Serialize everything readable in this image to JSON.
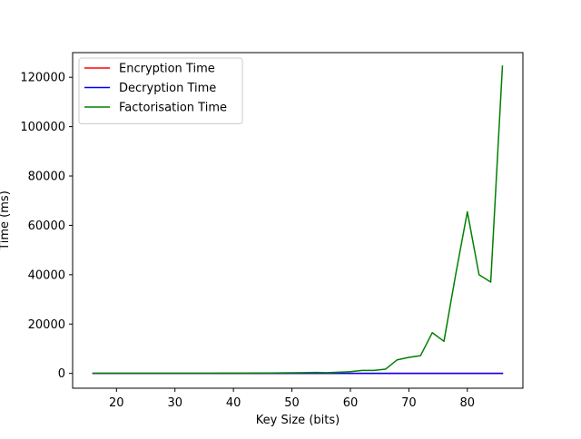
{
  "chart_data": {
    "type": "line",
    "title": "",
    "xlabel": "Key Size (bits)",
    "ylabel": "Time (ms)",
    "xlim": [
      12.5,
      89.5
    ],
    "ylim": [
      -6000,
      130000
    ],
    "x_ticks": [
      20,
      30,
      40,
      50,
      60,
      70,
      80
    ],
    "y_ticks": [
      0,
      20000,
      40000,
      60000,
      80000,
      100000,
      120000
    ],
    "grid": false,
    "legend_position": "upper-left",
    "series": [
      {
        "name": "Encryption Time",
        "color": "#ff0000",
        "x": [
          16,
          18,
          20,
          22,
          24,
          26,
          28,
          30,
          32,
          34,
          36,
          38,
          40,
          42,
          44,
          46,
          48,
          50,
          52,
          54,
          56,
          58,
          60,
          62,
          64,
          66,
          68,
          70,
          72,
          74,
          76,
          78,
          80,
          82,
          84,
          86
        ],
        "y": [
          1,
          1,
          1,
          1,
          1,
          1,
          1,
          1,
          1,
          1,
          1,
          1,
          1,
          1,
          1,
          1,
          1,
          1,
          1,
          1,
          1,
          1,
          1,
          1,
          1,
          1,
          1,
          1,
          1,
          1,
          1,
          1,
          1,
          1,
          1,
          1
        ]
      },
      {
        "name": "Decryption Time",
        "color": "#0000ff",
        "x": [
          16,
          18,
          20,
          22,
          24,
          26,
          28,
          30,
          32,
          34,
          36,
          38,
          40,
          42,
          44,
          46,
          48,
          50,
          52,
          54,
          56,
          58,
          60,
          62,
          64,
          66,
          68,
          70,
          72,
          74,
          76,
          78,
          80,
          82,
          84,
          86
        ],
        "y": [
          2,
          2,
          2,
          2,
          2,
          2,
          2,
          2,
          2,
          2,
          2,
          2,
          2,
          2,
          2,
          2,
          2,
          2,
          2,
          2,
          2,
          2,
          2,
          2,
          2,
          2,
          2,
          2,
          2,
          2,
          2,
          2,
          2,
          2,
          2,
          2
        ]
      },
      {
        "name": "Factorisation Time",
        "color": "#008000",
        "x": [
          16,
          18,
          20,
          22,
          24,
          26,
          28,
          30,
          32,
          34,
          36,
          38,
          40,
          42,
          44,
          46,
          48,
          50,
          52,
          54,
          56,
          58,
          60,
          62,
          64,
          66,
          68,
          70,
          72,
          74,
          76,
          78,
          80,
          82,
          84,
          86
        ],
        "y": [
          50,
          50,
          50,
          50,
          50,
          50,
          50,
          60,
          60,
          70,
          80,
          90,
          100,
          120,
          150,
          180,
          200,
          250,
          300,
          400,
          300,
          500,
          700,
          1200,
          1200,
          1700,
          5500,
          6500,
          7200,
          16500,
          13000,
          40000,
          65500,
          40000,
          37000,
          124500
        ]
      }
    ]
  }
}
